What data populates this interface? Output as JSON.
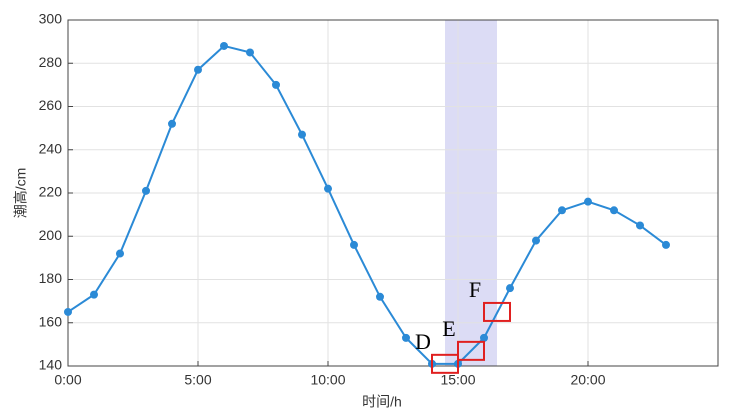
{
  "chart_data": {
    "type": "line",
    "x_label": "时间/h",
    "y_label": "潮高/cm",
    "x": [
      0,
      1,
      2,
      3,
      4,
      5,
      6,
      7,
      8,
      9,
      10,
      11,
      12,
      13,
      14,
      15,
      16,
      17,
      18,
      19,
      20,
      21,
      22,
      23
    ],
    "series": [
      {
        "color": "#2b8ad6",
        "values": [
          165,
          173,
          192,
          221,
          252,
          277,
          288,
          285,
          270,
          247,
          222,
          196,
          172,
          153,
          141,
          141,
          153,
          176,
          198,
          212,
          216,
          212,
          205,
          196
        ]
      }
    ],
    "xlim": [
      0,
      25
    ],
    "ylim": [
      140,
      300
    ],
    "xticks": [
      {
        "value": 0,
        "label": "0:00"
      },
      {
        "value": 5,
        "label": "5:00"
      },
      {
        "value": 10,
        "label": "10:00"
      },
      {
        "value": 15,
        "label": "15:00"
      },
      {
        "value": 20,
        "label": "20:00"
      }
    ],
    "yticks": [
      140,
      160,
      180,
      200,
      220,
      240,
      260,
      280,
      300
    ],
    "grid": true,
    "highlight_span": {
      "x": [
        14.5,
        16.5
      ],
      "color": "#dcdcf5"
    },
    "annotations": [
      {
        "label": "D",
        "x": 14.5,
        "y": 141,
        "color": "#e02020"
      },
      {
        "label": "E",
        "x": 15.5,
        "y": 147,
        "color": "#e02020"
      },
      {
        "label": "F",
        "x": 16.5,
        "y": 165,
        "color": "#e02020"
      }
    ]
  }
}
